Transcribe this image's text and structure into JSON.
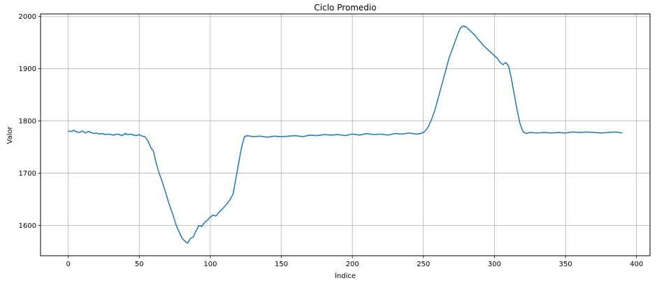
{
  "chart_data": {
    "type": "line",
    "title": "Ciclo Promedio",
    "xlabel": "Índice",
    "ylabel": "Valor",
    "xlim": [
      -19.5,
      409.5
    ],
    "ylim": [
      1542,
      2005
    ],
    "xticks": [
      0,
      50,
      100,
      150,
      200,
      250,
      300,
      350,
      400
    ],
    "yticks": [
      1600,
      1700,
      1800,
      1900,
      2000
    ],
    "grid": true,
    "line_color": "#1f77b4",
    "series": [
      {
        "x": [
          0,
          2,
          4,
          6,
          8,
          10,
          12,
          14,
          16,
          18,
          20,
          22,
          24,
          26,
          28,
          30,
          32,
          34,
          36,
          38,
          40,
          42,
          44,
          46,
          48,
          50,
          52,
          54,
          56,
          58,
          60,
          62,
          64,
          66,
          68,
          70,
          72,
          74,
          76,
          78,
          80,
          82,
          84,
          86,
          88,
          90,
          92,
          94,
          96,
          98,
          100,
          102,
          104,
          106,
          108,
          110,
          112,
          114,
          116,
          118,
          120,
          122,
          124,
          126,
          128,
          130,
          135,
          140,
          145,
          150,
          155,
          160,
          165,
          170,
          175,
          180,
          185,
          190,
          195,
          200,
          205,
          210,
          215,
          220,
          225,
          230,
          235,
          240,
          245,
          248,
          250,
          252,
          254,
          256,
          258,
          260,
          262,
          264,
          266,
          268,
          270,
          272,
          274,
          276,
          278,
          280,
          282,
          284,
          286,
          288,
          290,
          292,
          294,
          296,
          298,
          300,
          302,
          304,
          306,
          308,
          310,
          312,
          314,
          316,
          318,
          320,
          322,
          325,
          330,
          335,
          340,
          345,
          350,
          355,
          360,
          365,
          370,
          375,
          380,
          385,
          390
        ],
        "y": [
          1781,
          1780,
          1782,
          1779,
          1778,
          1781,
          1777,
          1780,
          1778,
          1776,
          1777,
          1775,
          1776,
          1774,
          1775,
          1774,
          1773,
          1775,
          1774,
          1772,
          1776,
          1774,
          1775,
          1773,
          1772,
          1774,
          1771,
          1770,
          1762,
          1750,
          1742,
          1718,
          1700,
          1685,
          1668,
          1650,
          1633,
          1618,
          1600,
          1588,
          1576,
          1570,
          1566,
          1575,
          1578,
          1590,
          1600,
          1598,
          1606,
          1610,
          1616,
          1620,
          1618,
          1625,
          1630,
          1636,
          1642,
          1650,
          1660,
          1690,
          1720,
          1750,
          1770,
          1772,
          1771,
          1770,
          1771,
          1769,
          1771,
          1770,
          1771,
          1772,
          1770,
          1773,
          1772,
          1774,
          1773,
          1774,
          1772,
          1775,
          1773,
          1776,
          1774,
          1775,
          1773,
          1776,
          1775,
          1777,
          1775,
          1776,
          1778,
          1783,
          1792,
          1805,
          1820,
          1840,
          1860,
          1880,
          1900,
          1920,
          1935,
          1950,
          1965,
          1978,
          1982,
          1980,
          1975,
          1970,
          1965,
          1958,
          1952,
          1945,
          1940,
          1935,
          1930,
          1925,
          1920,
          1912,
          1908,
          1912,
          1905,
          1880,
          1850,
          1820,
          1795,
          1780,
          1776,
          1778,
          1777,
          1778,
          1777,
          1778,
          1777,
          1779,
          1778,
          1779,
          1778,
          1777,
          1778,
          1779,
          1777
        ]
      }
    ]
  }
}
